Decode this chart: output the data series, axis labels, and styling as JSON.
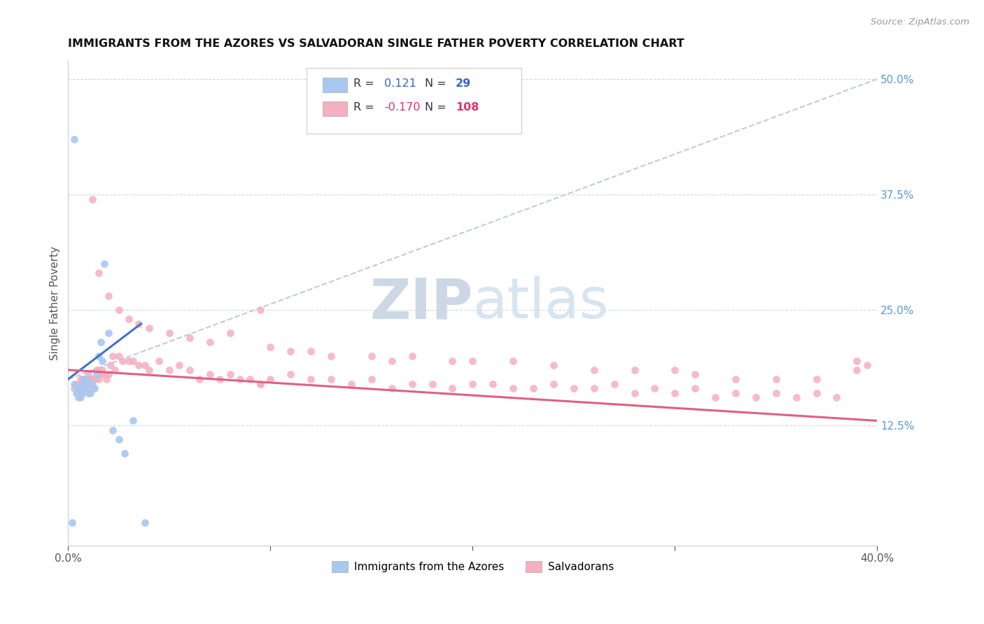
{
  "title": "IMMIGRANTS FROM THE AZORES VS SALVADORAN SINGLE FATHER POVERTY CORRELATION CHART",
  "source": "Source: ZipAtlas.com",
  "ylabel": "Single Father Poverty",
  "right_yticks": [
    "50.0%",
    "37.5%",
    "25.0%",
    "12.5%"
  ],
  "right_ytick_vals": [
    0.5,
    0.375,
    0.25,
    0.125
  ],
  "r_blue": 0.121,
  "n_blue": 29,
  "r_pink": -0.17,
  "n_pink": 108,
  "color_blue": "#a8c8f0",
  "color_blue_line": "#4472c4",
  "color_pink": "#f4b0c0",
  "color_pink_line": "#e06080",
  "color_dashed": "#c0cdd8",
  "watermark_zip_color": "#c8d8e8",
  "watermark_atlas_color": "#d8e4ee",
  "background_color": "#ffffff",
  "xlim": [
    0.0,
    0.4
  ],
  "ylim": [
    -0.005,
    0.52
  ],
  "legend_r_blue": "0.121",
  "legend_n_blue": "29",
  "legend_r_pink": "-0.170",
  "legend_n_pink": "108",
  "blue_x": [
    0.002,
    0.003,
    0.003,
    0.004,
    0.005,
    0.005,
    0.006,
    0.006,
    0.007,
    0.007,
    0.008,
    0.008,
    0.009,
    0.01,
    0.01,
    0.011,
    0.012,
    0.013,
    0.014,
    0.015,
    0.016,
    0.017,
    0.018,
    0.02,
    0.022,
    0.025,
    0.028,
    0.032,
    0.038
  ],
  "blue_y": [
    0.02,
    0.435,
    0.17,
    0.16,
    0.165,
    0.155,
    0.155,
    0.16,
    0.17,
    0.165,
    0.175,
    0.165,
    0.175,
    0.17,
    0.16,
    0.16,
    0.17,
    0.165,
    0.18,
    0.2,
    0.215,
    0.195,
    0.3,
    0.225,
    0.12,
    0.11,
    0.095,
    0.13,
    0.02
  ],
  "pink_x": [
    0.003,
    0.004,
    0.005,
    0.006,
    0.006,
    0.007,
    0.007,
    0.008,
    0.008,
    0.009,
    0.01,
    0.01,
    0.011,
    0.012,
    0.012,
    0.013,
    0.014,
    0.015,
    0.015,
    0.016,
    0.017,
    0.018,
    0.019,
    0.02,
    0.021,
    0.022,
    0.023,
    0.025,
    0.027,
    0.03,
    0.032,
    0.035,
    0.038,
    0.04,
    0.045,
    0.05,
    0.055,
    0.06,
    0.065,
    0.07,
    0.075,
    0.08,
    0.085,
    0.09,
    0.095,
    0.1,
    0.11,
    0.12,
    0.13,
    0.14,
    0.15,
    0.16,
    0.17,
    0.18,
    0.19,
    0.2,
    0.21,
    0.22,
    0.23,
    0.24,
    0.25,
    0.26,
    0.27,
    0.28,
    0.29,
    0.3,
    0.31,
    0.32,
    0.33,
    0.34,
    0.35,
    0.36,
    0.37,
    0.38,
    0.39,
    0.395,
    0.012,
    0.015,
    0.02,
    0.025,
    0.03,
    0.035,
    0.04,
    0.05,
    0.06,
    0.07,
    0.08,
    0.095,
    0.095,
    0.1,
    0.11,
    0.12,
    0.13,
    0.15,
    0.16,
    0.17,
    0.19,
    0.2,
    0.22,
    0.24,
    0.26,
    0.28,
    0.3,
    0.31,
    0.33,
    0.35,
    0.37,
    0.39
  ],
  "pink_y": [
    0.165,
    0.17,
    0.165,
    0.17,
    0.175,
    0.16,
    0.175,
    0.165,
    0.17,
    0.165,
    0.17,
    0.18,
    0.175,
    0.165,
    0.175,
    0.175,
    0.185,
    0.185,
    0.175,
    0.18,
    0.185,
    0.18,
    0.175,
    0.18,
    0.19,
    0.2,
    0.185,
    0.2,
    0.195,
    0.195,
    0.195,
    0.19,
    0.19,
    0.185,
    0.195,
    0.185,
    0.19,
    0.185,
    0.175,
    0.18,
    0.175,
    0.18,
    0.175,
    0.175,
    0.17,
    0.175,
    0.18,
    0.175,
    0.175,
    0.17,
    0.175,
    0.165,
    0.17,
    0.17,
    0.165,
    0.17,
    0.17,
    0.165,
    0.165,
    0.17,
    0.165,
    0.165,
    0.17,
    0.16,
    0.165,
    0.16,
    0.165,
    0.155,
    0.16,
    0.155,
    0.16,
    0.155,
    0.16,
    0.155,
    0.195,
    0.19,
    0.37,
    0.29,
    0.265,
    0.25,
    0.24,
    0.235,
    0.23,
    0.225,
    0.22,
    0.215,
    0.225,
    0.25,
    0.17,
    0.21,
    0.205,
    0.205,
    0.2,
    0.2,
    0.195,
    0.2,
    0.195,
    0.195,
    0.195,
    0.19,
    0.185,
    0.185,
    0.185,
    0.18,
    0.175,
    0.175,
    0.175,
    0.185
  ],
  "blue_line_x": [
    0.0,
    0.036
  ],
  "blue_line_y": [
    0.175,
    0.235
  ],
  "dashed_line_x": [
    0.0,
    0.4
  ],
  "dashed_line_y": [
    0.175,
    0.5
  ],
  "pink_line_x": [
    0.0,
    0.4
  ],
  "pink_line_y": [
    0.185,
    0.13
  ]
}
